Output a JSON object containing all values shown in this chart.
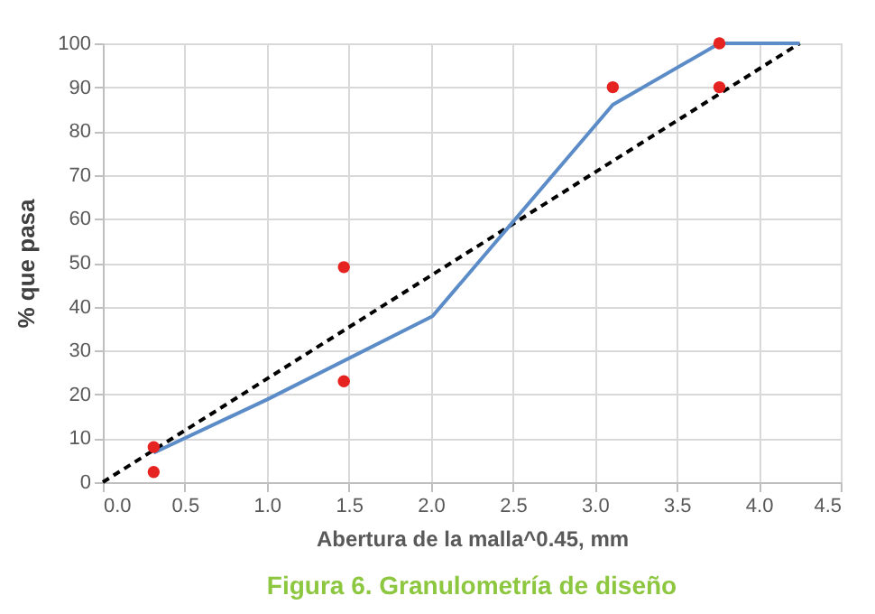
{
  "chart_data": {
    "type": "line",
    "title": "Figura 6. Granulometría de diseño",
    "xlabel": "Abertura de la malla^0.45, mm",
    "ylabel": "% que pasa",
    "xlim": [
      0,
      4.5
    ],
    "xticks": [
      {
        "value": 0,
        "label": "0.0"
      },
      {
        "value": 0.5,
        "label": "0.5"
      },
      {
        "value": 1,
        "label": "1.0"
      },
      {
        "value": 1.5,
        "label": "1.5"
      },
      {
        "value": 2,
        "label": "2.0"
      },
      {
        "value": 2.5,
        "label": "2.5"
      },
      {
        "value": 3,
        "label": "3.0"
      },
      {
        "value": 3.5,
        "label": "3.5"
      },
      {
        "value": 4,
        "label": "4.0"
      },
      {
        "value": 4.5,
        "label": "4.5"
      }
    ],
    "ylim": [
      0,
      100
    ],
    "yticks": [
      0,
      10,
      20,
      30,
      40,
      50,
      60,
      70,
      80,
      90,
      100
    ],
    "grid": true,
    "series": [
      {
        "color": "#000000",
        "line_style": "dashed",
        "marker": "none",
        "x": [
          0,
          4.25
        ],
        "values": [
          0,
          100
        ]
      },
      {
        "color": "#5b8cc8",
        "line_style": "solid",
        "marker": "none",
        "x": [
          0.31,
          1.0,
          2.01,
          3.11,
          3.76,
          4.25
        ],
        "values": [
          6.7,
          18.8,
          37.8,
          86,
          100,
          100
        ]
      },
      {
        "type": "scatter",
        "color": "#e52421",
        "marker": "circle",
        "x": [
          0.31,
          0.31,
          1.47,
          1.47,
          3.11,
          3.76,
          3.76
        ],
        "values": [
          8,
          2.3,
          49,
          23,
          90,
          100,
          90
        ]
      }
    ]
  }
}
